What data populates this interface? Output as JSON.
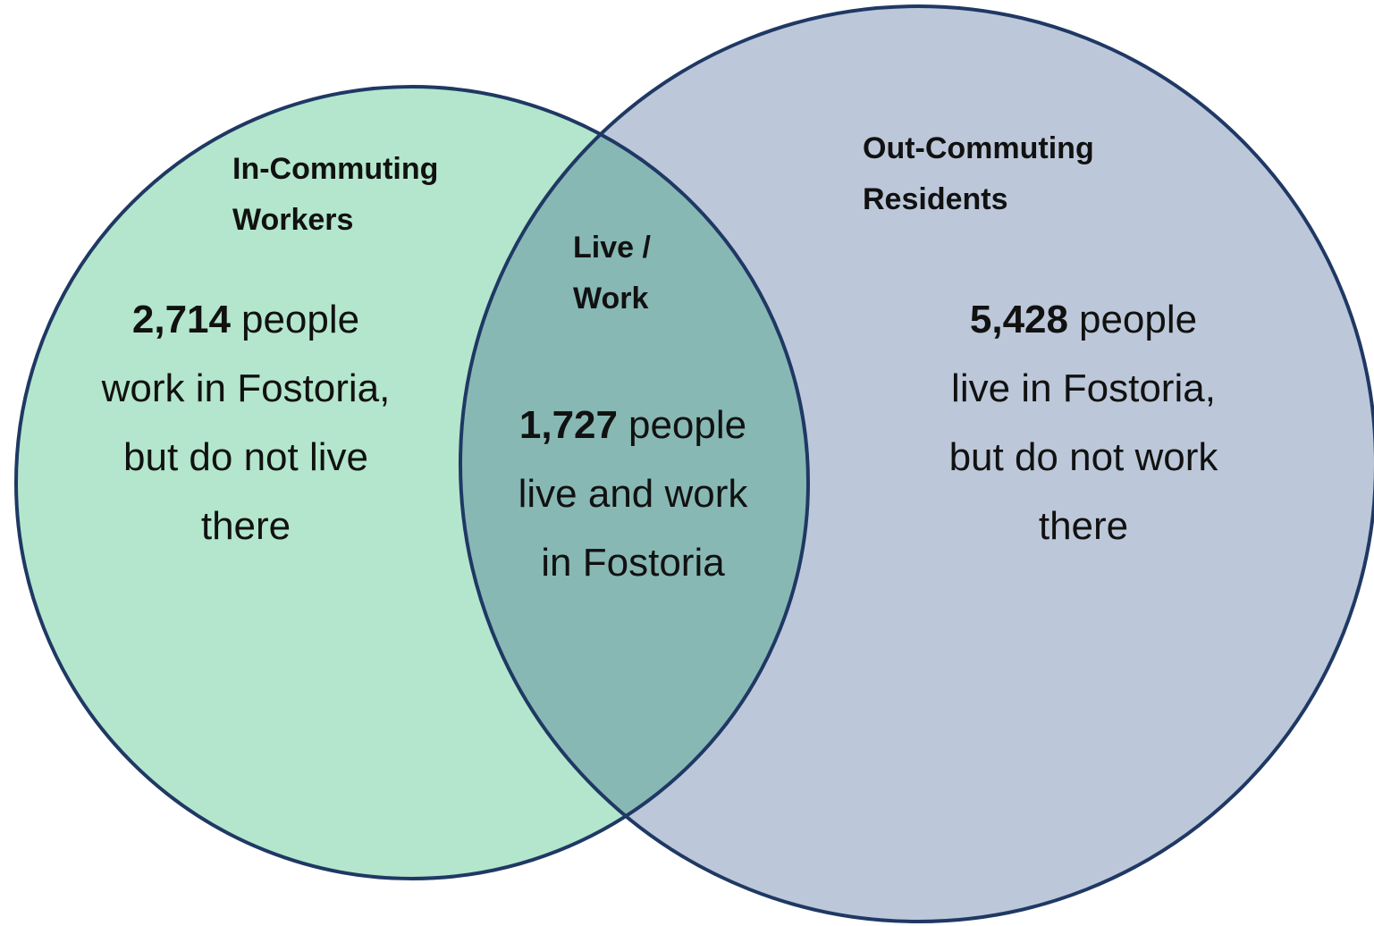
{
  "regions": [
    {
      "title_lines": [
        "In-Commuting",
        "Workers"
      ],
      "count": "2,714",
      "count_unit": "people",
      "lines": [
        "work in Fostoria,",
        "but do not live",
        "there"
      ]
    },
    {
      "title_lines": [
        "Live /",
        "Work"
      ],
      "count": "1,727",
      "count_unit": "people",
      "lines": [
        "live and work",
        "in Fostoria"
      ]
    },
    {
      "title_lines": [
        "Out-Commuting",
        "Residents"
      ],
      "count": "5,428",
      "count_unit": "people",
      "lines": [
        "live in Fostoria,",
        "but do not work",
        "there"
      ]
    }
  ]
}
